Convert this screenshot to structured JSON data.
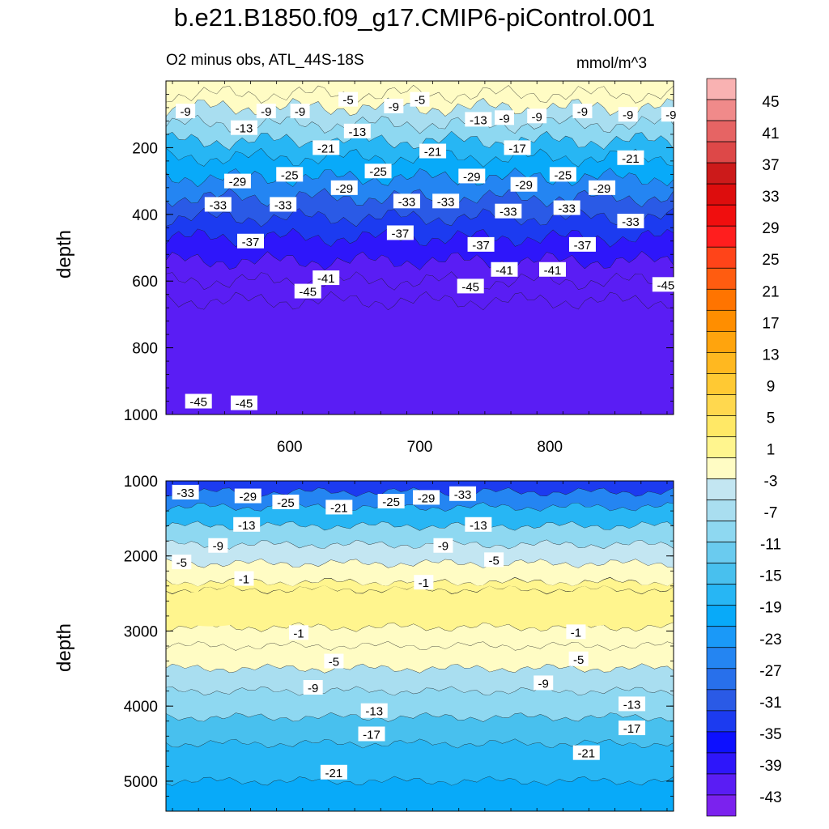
{
  "chart_data": {
    "type": "contour",
    "title": "b.e21.B1850.f09_g17.CMIP6-piControl.001",
    "subtitle": "O2 minus obs, ATL_44S-18S",
    "units": "mmol/m^3",
    "colors": {
      "scale": [
        "#7b22ee",
        "#5a1df4",
        "#2e16fa",
        "#0d10ff",
        "#1c3bf0",
        "#2a5ae6",
        "#2870eb",
        "#2485f2",
        "#1a99f8",
        "#08aaf9",
        "#27b6f4",
        "#48c0ee",
        "#6acbef",
        "#8ed8f1",
        "#a9def0",
        "#c3e6f2",
        "#fffcc4",
        "#fff58e",
        "#ffe866",
        "#ffd84e",
        "#ffc933",
        "#ffb820",
        "#ffa40d",
        "#ff8e00",
        "#ff7400",
        "#ff5c10",
        "#ff4419",
        "#ff1e1e",
        "#f00e0e",
        "#dd0d0d",
        "#cc1a1a",
        "#dd4848",
        "#e66464",
        "#f08a8a",
        "#f9b2b2"
      ],
      "contour_line": "#1a1a1a"
    },
    "colorbar": {
      "levels": [
        -45,
        -43,
        -41,
        -39,
        -37,
        -35,
        -33,
        -31,
        -29,
        -27,
        -25,
        -23,
        -21,
        -19,
        -17,
        -15,
        -13,
        -11,
        -9,
        -7,
        -5,
        -3,
        -1,
        1,
        3,
        5,
        7,
        9,
        11,
        13,
        15,
        17,
        19,
        21,
        23,
        25,
        27,
        29,
        31,
        33,
        35,
        37,
        39,
        41,
        43,
        45
      ],
      "tick_labels": [
        "45",
        "41",
        "37",
        "33",
        "29",
        "25",
        "21",
        "17",
        "13",
        "9",
        "5",
        "1",
        "-3",
        "-7",
        "-11",
        "-15",
        "-19",
        "-23",
        "-27",
        "-31",
        "-35",
        "-39",
        "-43"
      ]
    },
    "panels": [
      {
        "name": "upper",
        "ylabel": "depth",
        "x_range": [
          505,
          895
        ],
        "y_range": [
          0,
          1000
        ],
        "x_ticks": [
          600,
          700,
          800
        ],
        "x_tick_labels": [
          "600",
          "700",
          "800"
        ],
        "y_ticks": [
          200,
          400,
          600,
          800,
          1000
        ],
        "y_tick_labels": [
          "200",
          "400",
          "600",
          "800",
          "1000"
        ],
        "bands": [
          {
            "depth": 0,
            "value": 0
          },
          {
            "depth": 40,
            "value": -3
          },
          {
            "depth": 80,
            "value": -6
          },
          {
            "depth": 130,
            "value": -10
          },
          {
            "depth": 180,
            "value": -15
          },
          {
            "depth": 230,
            "value": -20
          },
          {
            "depth": 290,
            "value": -25
          },
          {
            "depth": 350,
            "value": -30
          },
          {
            "depth": 410,
            "value": -34
          },
          {
            "depth": 470,
            "value": -38
          },
          {
            "depth": 540,
            "value": -41
          },
          {
            "depth": 600,
            "value": -43
          },
          {
            "depth": 660,
            "value": -45
          },
          {
            "depth": 1000,
            "value": -45
          }
        ],
        "contour_labels": [
          {
            "x": 520,
            "depth": 90,
            "text": "-9"
          },
          {
            "x": 565,
            "depth": 140,
            "text": "-13"
          },
          {
            "x": 582,
            "depth": 90,
            "text": "-9"
          },
          {
            "x": 608,
            "depth": 90,
            "text": "-9"
          },
          {
            "x": 645,
            "depth": 55,
            "text": "-5"
          },
          {
            "x": 680,
            "depth": 75,
            "text": "-9"
          },
          {
            "x": 700,
            "depth": 55,
            "text": "-5"
          },
          {
            "x": 745,
            "depth": 115,
            "text": "-13"
          },
          {
            "x": 765,
            "depth": 110,
            "text": "-9"
          },
          {
            "x": 790,
            "depth": 105,
            "text": "-9"
          },
          {
            "x": 825,
            "depth": 90,
            "text": "-9"
          },
          {
            "x": 860,
            "depth": 100,
            "text": "-9"
          },
          {
            "x": 893,
            "depth": 100,
            "text": "-9"
          },
          {
            "x": 652,
            "depth": 150,
            "text": "-13"
          },
          {
            "x": 628,
            "depth": 200,
            "text": "-21"
          },
          {
            "x": 710,
            "depth": 210,
            "text": "-21"
          },
          {
            "x": 775,
            "depth": 200,
            "text": "-17"
          },
          {
            "x": 862,
            "depth": 230,
            "text": "-21"
          },
          {
            "x": 560,
            "depth": 300,
            "text": "-29"
          },
          {
            "x": 600,
            "depth": 280,
            "text": "-25"
          },
          {
            "x": 668,
            "depth": 270,
            "text": "-25"
          },
          {
            "x": 642,
            "depth": 320,
            "text": "-29"
          },
          {
            "x": 740,
            "depth": 285,
            "text": "-29"
          },
          {
            "x": 780,
            "depth": 310,
            "text": "-29"
          },
          {
            "x": 810,
            "depth": 280,
            "text": "-25"
          },
          {
            "x": 840,
            "depth": 320,
            "text": "-29"
          },
          {
            "x": 545,
            "depth": 370,
            "text": "-33"
          },
          {
            "x": 595,
            "depth": 370,
            "text": "-33"
          },
          {
            "x": 690,
            "depth": 360,
            "text": "-33"
          },
          {
            "x": 720,
            "depth": 360,
            "text": "-33"
          },
          {
            "x": 768,
            "depth": 390,
            "text": "-33"
          },
          {
            "x": 813,
            "depth": 380,
            "text": "-33"
          },
          {
            "x": 862,
            "depth": 420,
            "text": "-33"
          },
          {
            "x": 570,
            "depth": 480,
            "text": "-37"
          },
          {
            "x": 685,
            "depth": 455,
            "text": "-37"
          },
          {
            "x": 747,
            "depth": 490,
            "text": "-37"
          },
          {
            "x": 825,
            "depth": 490,
            "text": "-37"
          },
          {
            "x": 628,
            "depth": 590,
            "text": "-41"
          },
          {
            "x": 765,
            "depth": 565,
            "text": "-41"
          },
          {
            "x": 802,
            "depth": 565,
            "text": "-41"
          },
          {
            "x": 614,
            "depth": 630,
            "text": "-45"
          },
          {
            "x": 739,
            "depth": 615,
            "text": "-45"
          },
          {
            "x": 889,
            "depth": 610,
            "text": "-45"
          },
          {
            "x": 530,
            "depth": 960,
            "text": "-45"
          },
          {
            "x": 565,
            "depth": 965,
            "text": "-45"
          }
        ]
      },
      {
        "name": "lower",
        "ylabel": "depth",
        "x_range": [
          505,
          895
        ],
        "y_range": [
          1000,
          5400
        ],
        "x_ticks": [
          600,
          700,
          800
        ],
        "y_ticks": [
          1000,
          2000,
          3000,
          4000,
          5000
        ],
        "y_tick_labels": [
          "1000",
          "2000",
          "3000",
          "4000",
          "5000"
        ],
        "bands": [
          {
            "depth": 1000,
            "value": -39
          },
          {
            "depth": 1150,
            "value": -31
          },
          {
            "depth": 1350,
            "value": -23
          },
          {
            "depth": 1600,
            "value": -15
          },
          {
            "depth": 1850,
            "value": -9
          },
          {
            "depth": 2100,
            "value": -5
          },
          {
            "depth": 2350,
            "value": -2
          },
          {
            "depth": 2450,
            "value": 0
          },
          {
            "depth": 2950,
            "value": -1
          },
          {
            "depth": 3200,
            "value": -3
          },
          {
            "depth": 3500,
            "value": -6
          },
          {
            "depth": 3800,
            "value": -10
          },
          {
            "depth": 4150,
            "value": -14
          },
          {
            "depth": 4500,
            "value": -18
          },
          {
            "depth": 5000,
            "value": -21
          },
          {
            "depth": 5400,
            "value": -23
          }
        ],
        "contour_labels": [
          {
            "x": 520,
            "depth": 1150,
            "text": "-33"
          },
          {
            "x": 568,
            "depth": 1200,
            "text": "-29"
          },
          {
            "x": 597,
            "depth": 1280,
            "text": "-25"
          },
          {
            "x": 638,
            "depth": 1350,
            "text": "-21"
          },
          {
            "x": 678,
            "depth": 1270,
            "text": "-25"
          },
          {
            "x": 705,
            "depth": 1220,
            "text": "-29"
          },
          {
            "x": 733,
            "depth": 1170,
            "text": "-33"
          },
          {
            "x": 567,
            "depth": 1580,
            "text": "-13"
          },
          {
            "x": 745,
            "depth": 1580,
            "text": "-13"
          },
          {
            "x": 545,
            "depth": 1860,
            "text": "-9"
          },
          {
            "x": 517,
            "depth": 2080,
            "text": "-5"
          },
          {
            "x": 718,
            "depth": 1860,
            "text": "-9"
          },
          {
            "x": 757,
            "depth": 2050,
            "text": "-5"
          },
          {
            "x": 565,
            "depth": 2300,
            "text": "-1"
          },
          {
            "x": 703,
            "depth": 2350,
            "text": "-1"
          },
          {
            "x": 607,
            "depth": 3020,
            "text": "-1"
          },
          {
            "x": 820,
            "depth": 3010,
            "text": "-1"
          },
          {
            "x": 634,
            "depth": 3400,
            "text": "-5"
          },
          {
            "x": 822,
            "depth": 3370,
            "text": "-5"
          },
          {
            "x": 618,
            "depth": 3750,
            "text": "-9"
          },
          {
            "x": 795,
            "depth": 3690,
            "text": "-9"
          },
          {
            "x": 665,
            "depth": 4060,
            "text": "-13"
          },
          {
            "x": 863,
            "depth": 3970,
            "text": "-13"
          },
          {
            "x": 663,
            "depth": 4370,
            "text": "-17"
          },
          {
            "x": 863,
            "depth": 4290,
            "text": "-17"
          },
          {
            "x": 828,
            "depth": 4620,
            "text": "-21"
          },
          {
            "x": 634,
            "depth": 4880,
            "text": "-21"
          }
        ]
      }
    ]
  }
}
